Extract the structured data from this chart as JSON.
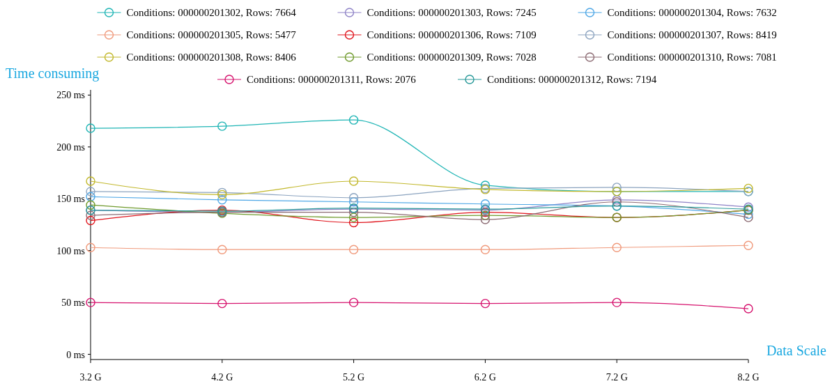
{
  "chart_data": {
    "type": "line",
    "ylabel": "Time consuming",
    "xlabel": "Data Scale",
    "categories": [
      "3.2 G",
      "4.2 G",
      "5.2 G",
      "6.2 G",
      "7.2 G",
      "8.2 G"
    ],
    "ylim": [
      -5,
      255
    ],
    "yticks": [
      {
        "value": 0,
        "label": "0 ms"
      },
      {
        "value": 50,
        "label": "50 ms"
      },
      {
        "value": 100,
        "label": "100 ms"
      },
      {
        "value": 150,
        "label": "150 ms"
      },
      {
        "value": 200,
        "label": "200 ms"
      },
      {
        "value": 250,
        "label": "250 ms"
      }
    ],
    "grid": false,
    "legend": "top",
    "marker": "circle",
    "line_style": "solid",
    "series": [
      {
        "name": "Conditions: 000000201302, Rows: 7664",
        "color": "#1fb5b5",
        "values": [
          218,
          220,
          226,
          163,
          157,
          157
        ]
      },
      {
        "name": "Conditions: 000000201303, Rows: 7245",
        "color": "#8f83c7",
        "values": [
          139,
          137,
          140,
          139,
          149,
          142
        ]
      },
      {
        "name": "Conditions: 000000201304, Rows: 7632",
        "color": "#4ea7e6",
        "values": [
          152,
          149,
          147,
          145,
          143,
          135
        ]
      },
      {
        "name": "Conditions: 000000201305, Rows: 5477",
        "color": "#f09a7c",
        "values": [
          103,
          101,
          101,
          101,
          103,
          105
        ]
      },
      {
        "name": "Conditions: 000000201306, Rows: 7109",
        "color": "#e0141c",
        "values": [
          129,
          139,
          127,
          137,
          132,
          139
        ]
      },
      {
        "name": "Conditions: 000000201307, Rows: 8419",
        "color": "#8ba3bf",
        "values": [
          157,
          156,
          151,
          160,
          161,
          157
        ]
      },
      {
        "name": "Conditions: 000000201308, Rows: 8406",
        "color": "#c2b82c",
        "values": [
          167,
          154,
          167,
          159,
          157,
          160
        ]
      },
      {
        "name": "Conditions: 000000201309, Rows: 7028",
        "color": "#6f9a2c",
        "values": [
          144,
          136,
          132,
          134,
          132,
          139
        ]
      },
      {
        "name": "Conditions: 000000201310, Rows: 7081",
        "color": "#8c6b73",
        "values": [
          134,
          137,
          137,
          130,
          147,
          132
        ]
      },
      {
        "name": "Conditions: 000000201311, Rows: 2076",
        "color": "#d6136e",
        "values": [
          50,
          49,
          50,
          49,
          50,
          44
        ]
      },
      {
        "name": "Conditions: 000000201312, Rows: 7194",
        "color": "#2a9a9a",
        "values": [
          139,
          138,
          141,
          140,
          143,
          140
        ]
      }
    ]
  }
}
